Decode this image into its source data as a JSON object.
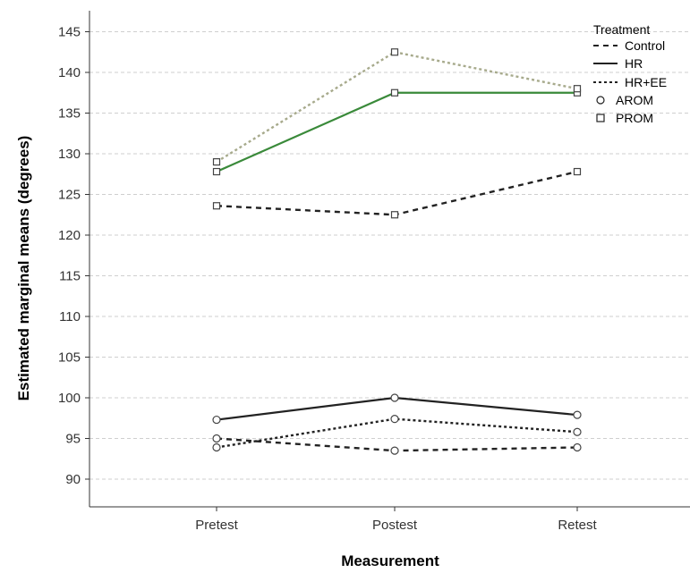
{
  "chart_data": {
    "type": "line",
    "xlabel": "Measurement",
    "ylabel": "Estimated marginal means (degrees)",
    "categories": [
      "Pretest",
      "Postest",
      "Retest"
    ],
    "ylim": [
      87,
      148
    ],
    "yticks": [
      90,
      95,
      100,
      105,
      110,
      115,
      120,
      125,
      130,
      135,
      140,
      145
    ],
    "grid": "horizontal dashed",
    "legend": {
      "title": "Treatment",
      "position": "top-right",
      "entries": [
        {
          "label": "Control",
          "style": "dashed"
        },
        {
          "label": "HR",
          "style": "solid"
        },
        {
          "label": "HR+EE",
          "style": "dotted"
        },
        {
          "label": "AROM",
          "marker": "circle"
        },
        {
          "label": "PROM",
          "marker": "square"
        }
      ]
    },
    "series": [
      {
        "treatment": "HR",
        "measure": "PROM",
        "values": [
          127.8,
          137.5,
          137.5
        ],
        "color": "#3a8a3a",
        "dash": "solid",
        "marker": "square"
      },
      {
        "treatment": "HR+EE",
        "measure": "PROM",
        "values": [
          129.0,
          142.5,
          138.0
        ],
        "color": "#a7aa8c",
        "dash": "dotted",
        "marker": "square"
      },
      {
        "treatment": "Control",
        "measure": "PROM",
        "values": [
          123.6,
          122.5,
          127.8
        ],
        "color": "#222222",
        "dash": "dashed",
        "marker": "square"
      },
      {
        "treatment": "HR",
        "measure": "AROM",
        "values": [
          97.3,
          100.0,
          97.9
        ],
        "color": "#222222",
        "dash": "solid",
        "marker": "circle"
      },
      {
        "treatment": "HR+EE",
        "measure": "AROM",
        "values": [
          93.9,
          97.4,
          95.8
        ],
        "color": "#222222",
        "dash": "dotted",
        "marker": "circle"
      },
      {
        "treatment": "Control",
        "measure": "AROM",
        "values": [
          95.0,
          93.5,
          93.9
        ],
        "color": "#222222",
        "dash": "dashed",
        "marker": "circle"
      }
    ]
  }
}
